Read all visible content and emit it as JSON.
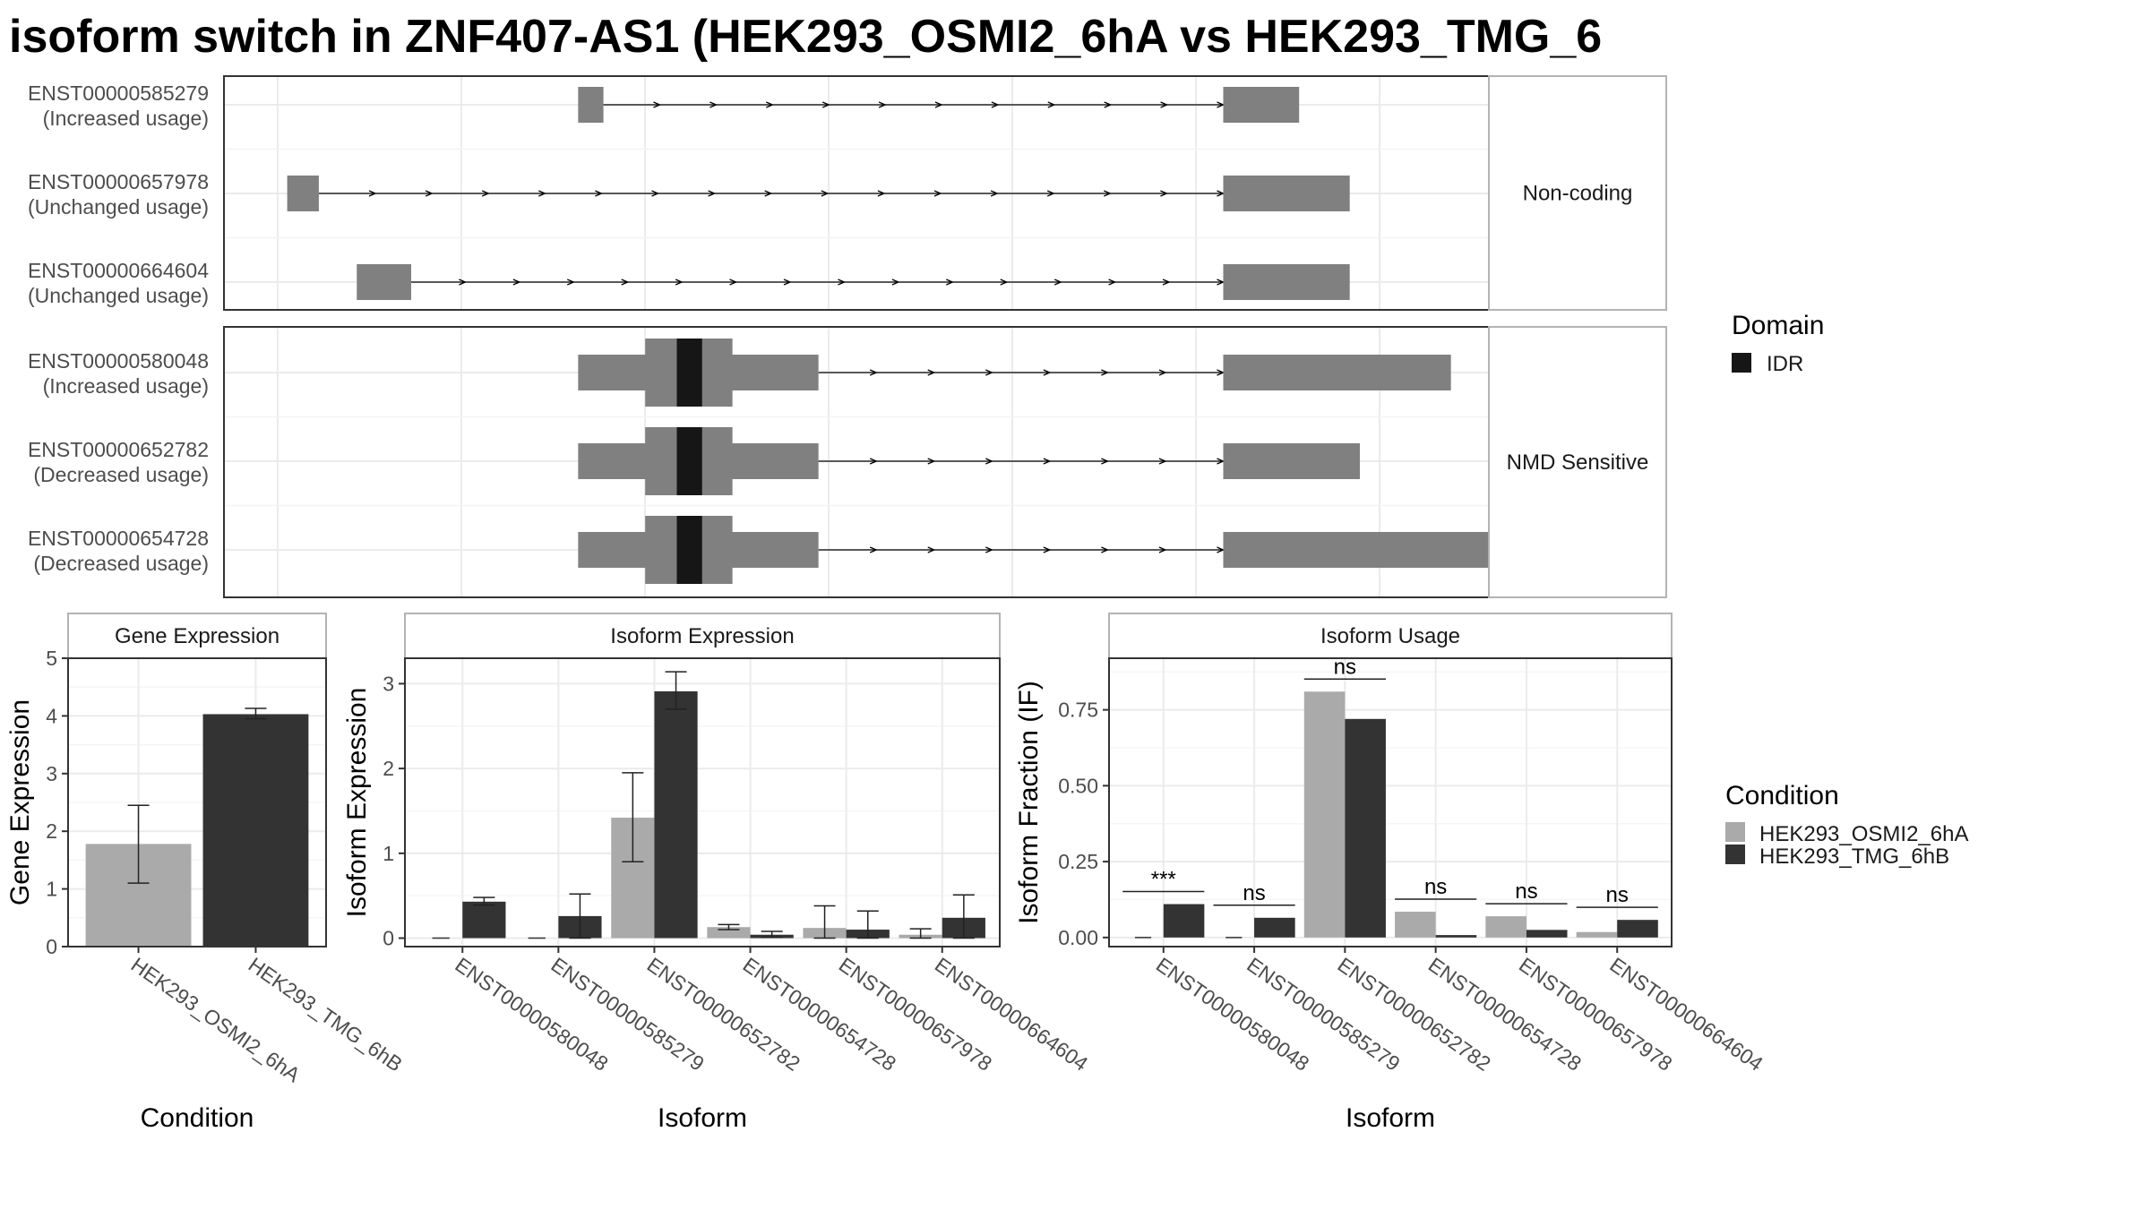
{
  "title": "isoform switch in ZNF407-AS1 (HEK293_OSMI2_6hA vs HEK293_TMG_6",
  "colors": {
    "osmi": "#aaaaaa",
    "tmg": "#333333",
    "exon": "#808080",
    "domain_idr": "#161616",
    "grid": "#ebebeb",
    "panel_border": "#333333",
    "strip_border": "#b3b3b3"
  },
  "chart_data": [
    {
      "type": "gene-structure",
      "domain_legend": {
        "title": "Domain",
        "items": [
          "IDR"
        ]
      },
      "facets": [
        {
          "label": "Non-coding",
          "tracks": [
            {
              "id": "ENST00000585279",
              "status": "(Increased usage)",
              "exons": [
                [
                  0.28,
                  0.3
                ],
                [
                  0.79,
                  0.85
                ]
              ],
              "cds": [],
              "domains": []
            },
            {
              "id": "ENST00000657978",
              "status": "(Unchanged usage)",
              "exons": [
                [
                  0.05,
                  0.075
                ],
                [
                  0.79,
                  0.89
                ]
              ],
              "cds": [],
              "domains": []
            },
            {
              "id": "ENST00000664604",
              "status": "(Unchanged usage)",
              "exons": [
                [
                  0.105,
                  0.148
                ],
                [
                  0.79,
                  0.89
                ]
              ],
              "cds": [],
              "domains": []
            }
          ]
        },
        {
          "label": "NMD Sensitive",
          "tracks": [
            {
              "id": "ENST00000580048",
              "status": "(Increased usage)",
              "exons": [
                [
                  0.28,
                  0.47
                ],
                [
                  0.79,
                  0.97
                ]
              ],
              "cds": [
                [
                  0.333,
                  0.402
                ]
              ],
              "domains": [
                [
                  0.358,
                  0.378
                ]
              ]
            },
            {
              "id": "ENST00000652782",
              "status": "(Decreased usage)",
              "exons": [
                [
                  0.28,
                  0.47
                ],
                [
                  0.79,
                  0.898
                ]
              ],
              "cds": [
                [
                  0.333,
                  0.402
                ]
              ],
              "domains": [
                [
                  0.358,
                  0.378
                ]
              ]
            },
            {
              "id": "ENST00000654728",
              "status": "(Decreased usage)",
              "exons": [
                [
                  0.28,
                  0.47
                ],
                [
                  0.79,
                  1.06
                ]
              ],
              "cds": [
                [
                  0.333,
                  0.402
                ]
              ],
              "domains": [
                [
                  0.358,
                  0.378
                ]
              ]
            }
          ]
        }
      ]
    },
    {
      "type": "bar",
      "title": "Gene Expression",
      "xlabel": "Condition",
      "ylabel": "Gene Expression",
      "ylim": [
        0,
        5
      ],
      "yticks": [
        0,
        1,
        2,
        3,
        4,
        5
      ],
      "categories": [
        "HEK293_OSMI2_6hA",
        "HEK293_TMG_6hB"
      ],
      "values": [
        1.78,
        4.03
      ],
      "errors": [
        [
          1.1,
          2.45
        ],
        [
          3.95,
          4.13
        ]
      ]
    },
    {
      "type": "bar",
      "title": "Isoform Expression",
      "xlabel": "Isoform",
      "ylabel": "Isoform Expression",
      "ylim": [
        -0.1,
        3.3
      ],
      "yticks": [
        0,
        1,
        2,
        3
      ],
      "categories": [
        "ENST00000580048",
        "ENST00000585279",
        "ENST00000652782",
        "ENST00000654728",
        "ENST00000657978",
        "ENST00000664604"
      ],
      "series": [
        {
          "name": "HEK293_OSMI2_6hA",
          "values": [
            0.0,
            0.0,
            1.42,
            0.13,
            0.12,
            0.04
          ],
          "errors": [
            null,
            null,
            [
              0.9,
              1.95
            ],
            [
              0.1,
              0.16
            ],
            [
              0.0,
              0.38
            ],
            [
              0.0,
              0.11
            ]
          ]
        },
        {
          "name": "HEK293_TMG_6hB",
          "values": [
            0.43,
            0.26,
            2.91,
            0.04,
            0.1,
            0.24
          ],
          "errors": [
            [
              0.39,
              0.48
            ],
            [
              0.0,
              0.52
            ],
            [
              2.7,
              3.14
            ],
            [
              0.01,
              0.08
            ],
            [
              0.0,
              0.32
            ],
            [
              0.0,
              0.51
            ]
          ]
        }
      ]
    },
    {
      "type": "bar",
      "title": "Isoform Usage",
      "xlabel": "Isoform",
      "ylabel": "Isoform Fraction (IF)",
      "ylim": [
        -0.03,
        0.92
      ],
      "yticks": [
        "0.00",
        "0.25",
        "0.50",
        "0.75"
      ],
      "ytick_values": [
        0,
        0.25,
        0.5,
        0.75
      ],
      "categories": [
        "ENST00000580048",
        "ENST00000585279",
        "ENST00000652782",
        "ENST00000654728",
        "ENST00000657978",
        "ENST00000664604"
      ],
      "series": [
        {
          "name": "HEK293_OSMI2_6hA",
          "values": [
            0.0,
            0.0,
            0.81,
            0.085,
            0.07,
            0.018
          ]
        },
        {
          "name": "HEK293_TMG_6hB",
          "values": [
            0.11,
            0.065,
            0.72,
            0.008,
            0.025,
            0.058
          ]
        }
      ],
      "significance": [
        "***",
        "ns",
        "ns",
        "ns",
        "ns",
        "ns"
      ]
    }
  ],
  "condition_legend": {
    "title": "Condition",
    "items": [
      "HEK293_OSMI2_6hA",
      "HEK293_TMG_6hB"
    ]
  }
}
